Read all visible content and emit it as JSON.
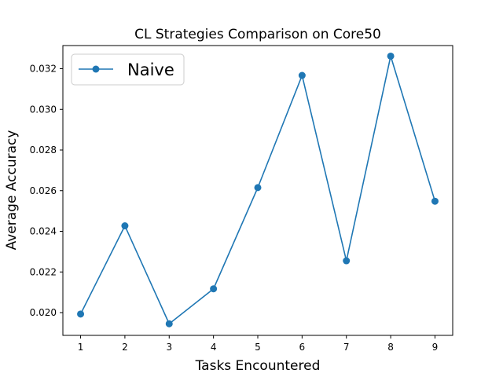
{
  "chart_data": {
    "type": "line",
    "title": "CL Strategies Comparison on Core50",
    "xlabel": "Tasks Encountered",
    "ylabel": "Average Accuracy",
    "x": [
      1,
      2,
      3,
      4,
      5,
      6,
      7,
      8,
      9
    ],
    "xticks": [
      "1",
      "2",
      "3",
      "4",
      "5",
      "6",
      "7",
      "8",
      "9"
    ],
    "yticks": [
      "0.020",
      "0.022",
      "0.024",
      "0.026",
      "0.028",
      "0.030",
      "0.032"
    ],
    "ytick_values": [
      0.02,
      0.022,
      0.024,
      0.026,
      0.028,
      0.03,
      0.032
    ],
    "xlim": [
      0.6,
      9.4
    ],
    "ylim": [
      0.01888,
      0.03314
    ],
    "series": [
      {
        "name": "Naive",
        "color": "#1f77b4",
        "marker": "circle",
        "values": [
          0.01993,
          0.02427,
          0.01945,
          0.02117,
          0.02615,
          0.03167,
          0.02255,
          0.03262,
          0.02548
        ]
      }
    ],
    "legend_position": "upper-left",
    "grid": false
  }
}
